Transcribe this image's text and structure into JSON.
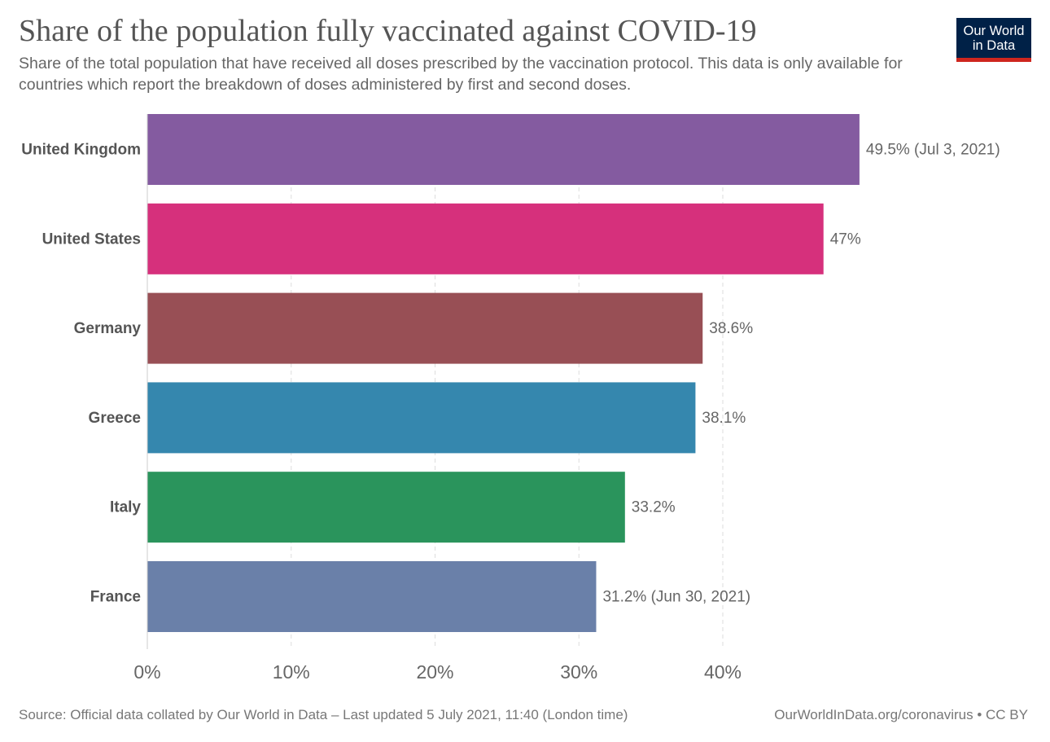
{
  "header": {
    "title": "Share of the population fully vaccinated against COVID-19",
    "subtitle": "Share of the total population that have received all doses prescribed by the vaccination protocol. This data is only available for countries which report the breakdown of doses administered by first and second doses."
  },
  "logo": {
    "line1": "Our World",
    "line2": "in Data"
  },
  "footer": {
    "source": "Source: Official data collated by Our World in Data – Last updated 5 July 2021, 11:40 (London time)",
    "credit": "OurWorldInData.org/coronavirus • CC BY"
  },
  "chart_data": {
    "type": "bar",
    "orientation": "horizontal",
    "title": "Share of the population fully vaccinated against COVID-19",
    "xlabel": "",
    "ylabel": "",
    "xlim": [
      0,
      50
    ],
    "x_ticks": [
      0,
      10,
      20,
      30,
      40
    ],
    "x_tick_labels": [
      "0%",
      "10%",
      "20%",
      "30%",
      "40%"
    ],
    "grid": true,
    "categories": [
      "United Kingdom",
      "United States",
      "Germany",
      "Greece",
      "Italy",
      "France"
    ],
    "values": [
      49.5,
      47,
      38.6,
      38.1,
      33.2,
      31.2
    ],
    "value_labels": [
      "49.5% (Jul 3, 2021)",
      "47%",
      "38.6%",
      "38.1%",
      "33.2%",
      "31.2% (Jun 30, 2021)"
    ],
    "colors": [
      "#845ba0",
      "#d6307c",
      "#984f55",
      "#3587ae",
      "#2a945c",
      "#6a80a9"
    ]
  }
}
